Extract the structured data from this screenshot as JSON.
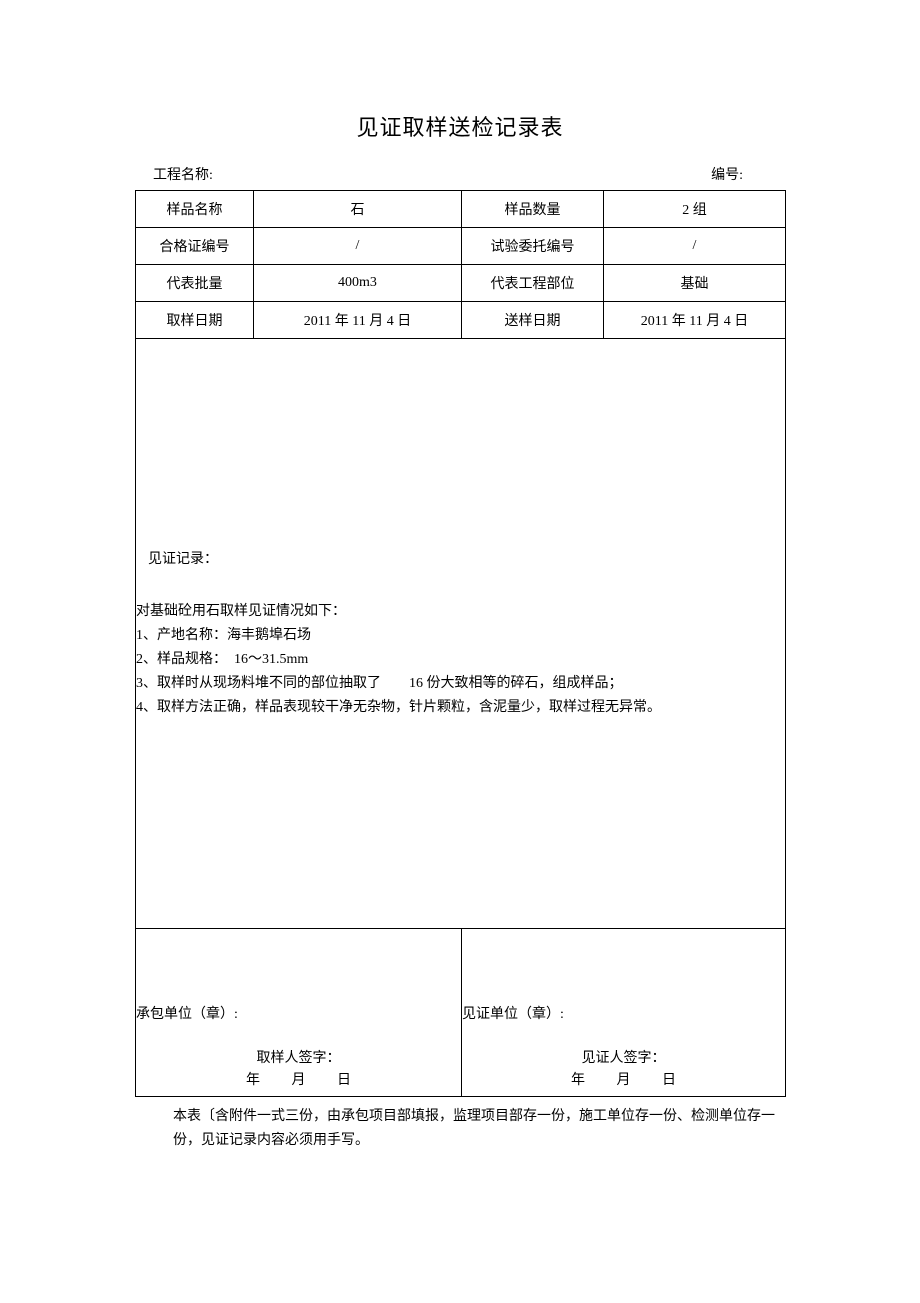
{
  "title": "见证取样送检记录表",
  "header": {
    "project_label": "工程名称:",
    "number_label": "编号:"
  },
  "rows": [
    {
      "l1": "样品名称",
      "v1": "石",
      "l2": "样品数量",
      "v2": "2 组"
    },
    {
      "l1": "合格证编号",
      "v1": "/",
      "l2": "试验委托编号",
      "v2": "/"
    },
    {
      "l1": "代表批量",
      "v1": "400m3",
      "l2": "代表工程部位",
      "v2": "基础"
    },
    {
      "l1": "取样日期",
      "v1": "2011 年 11 月 4 日",
      "l2": "送样日期",
      "v2": "2011 年 11 月 4 日"
    }
  ],
  "record": {
    "label": "见证记录：",
    "lines": [
      "对基础砼用石取样见证情况如下：",
      "1、产地名称：海丰鹅埠石场",
      "2、样品规格：　16～31.5mm",
      "3、取样时从现场料堆不同的部位抽取了　　16 份大致相等的碎石，组成样品；",
      "4、取样方法正确，样品表现较干净无杂物，针片颗粒，含泥量少，取样过程无异常。"
    ]
  },
  "sign": {
    "left": {
      "unit_label": "承包单位（章）:",
      "sig_label": "取样人签字：",
      "date_y": "年",
      "date_m": "月",
      "date_d": "日"
    },
    "right": {
      "unit_label": "见证单位（章）:",
      "sig_label": "见证人签字：",
      "date_y": "年",
      "date_m": "月",
      "date_d": "日"
    }
  },
  "footnote": "本表〔含附件一式三份，由承包项目部填报，监理项目部存一份，施工单位存一份、检测单位存一份，见证记录内容必须用手写。"
}
